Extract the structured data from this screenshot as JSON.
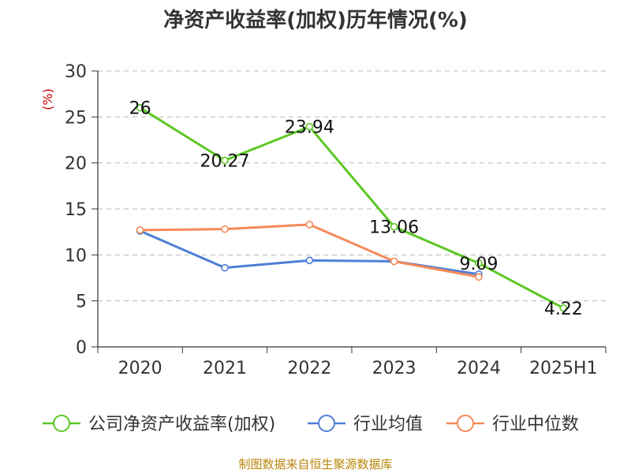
{
  "chart_data": {
    "type": "line",
    "title": "净资产收益率(加权)历年情况(%)",
    "ylabel": "(%)",
    "categories": [
      "2020",
      "2021",
      "2022",
      "2023",
      "2024",
      "2025H1"
    ],
    "ylim": [
      0,
      30
    ],
    "yticks": [
      "0",
      "5",
      "10",
      "15",
      "20",
      "25",
      "30"
    ],
    "grid": true,
    "legend_position": "bottom",
    "series": [
      {
        "name": "公司净资产收益率(加权)",
        "color": "#5cc724",
        "values": [
          26,
          20.27,
          23.94,
          13.06,
          9.09,
          4.22
        ],
        "labels": [
          "26",
          "20.27",
          "23.94",
          "13.06",
          "9.09",
          "4.22"
        ]
      },
      {
        "name": "行业均值",
        "color": "#4f7fd6",
        "values": [
          12.6,
          8.6,
          9.4,
          9.3,
          7.9,
          null
        ]
      },
      {
        "name": "行业中位数",
        "color": "#f58a5a",
        "values": [
          12.7,
          12.8,
          13.3,
          9.3,
          7.6,
          null
        ]
      }
    ]
  },
  "source": "制图数据来自恒生聚源数据库"
}
